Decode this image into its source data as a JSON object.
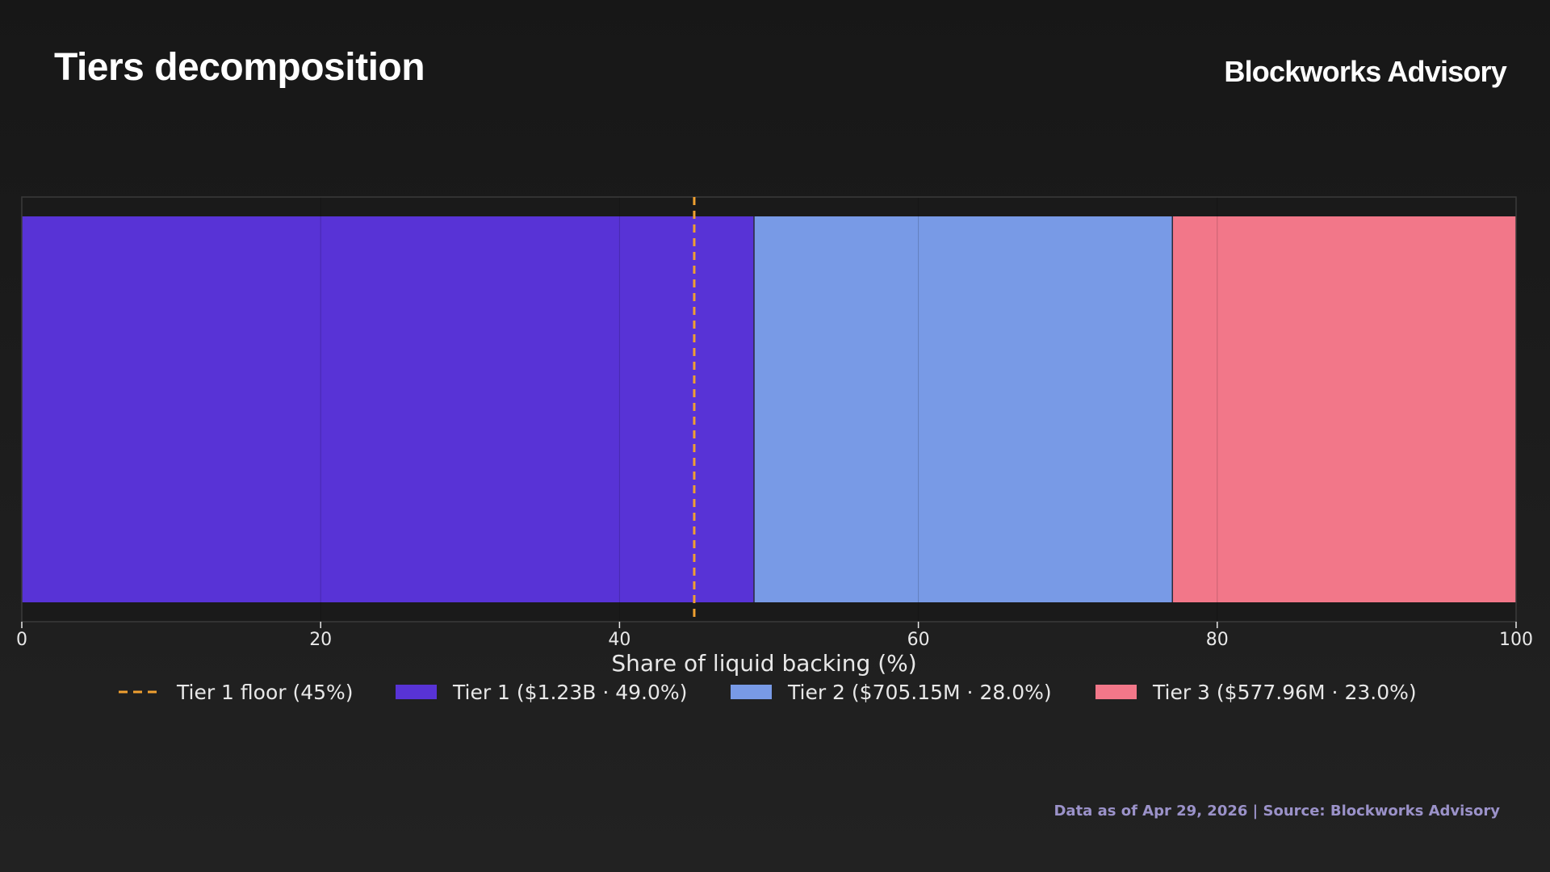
{
  "header": {
    "title": "Tiers decomposition",
    "brand": "Blockworks Advisory"
  },
  "footer": {
    "text": "Data as of Apr 29, 2026 | Source: Blockworks Advisory"
  },
  "chart_data": {
    "type": "bar",
    "orientation": "horizontal",
    "stacked": true,
    "title": "",
    "xlabel": "Share of liquid backing (%)",
    "ylabel": "",
    "xlim": [
      0,
      100
    ],
    "xticks": [
      0,
      20,
      40,
      60,
      80,
      100
    ],
    "grid": true,
    "legend_position": "bottom",
    "series": [
      {
        "name": "Tier 1 ($1.23B · 49.0%)",
        "value": 49.0,
        "color": "#5833d6"
      },
      {
        "name": "Tier 2 ($705.15M · 28.0%)",
        "value": 28.0,
        "color": "#789ae6"
      },
      {
        "name": "Tier 3 ($577.96M · 23.0%)",
        "value": 23.0,
        "color": "#f27789"
      }
    ],
    "reference_lines": [
      {
        "name": "Tier 1 floor (45%)",
        "x": 45,
        "color": "#f0a030",
        "style": "dashed"
      }
    ]
  },
  "colors": {
    "axis_text": "#e8e8e8",
    "grid": "#3a3a3a",
    "plot_background": "#1a1a1a",
    "footer_text": "#9b92c9"
  }
}
